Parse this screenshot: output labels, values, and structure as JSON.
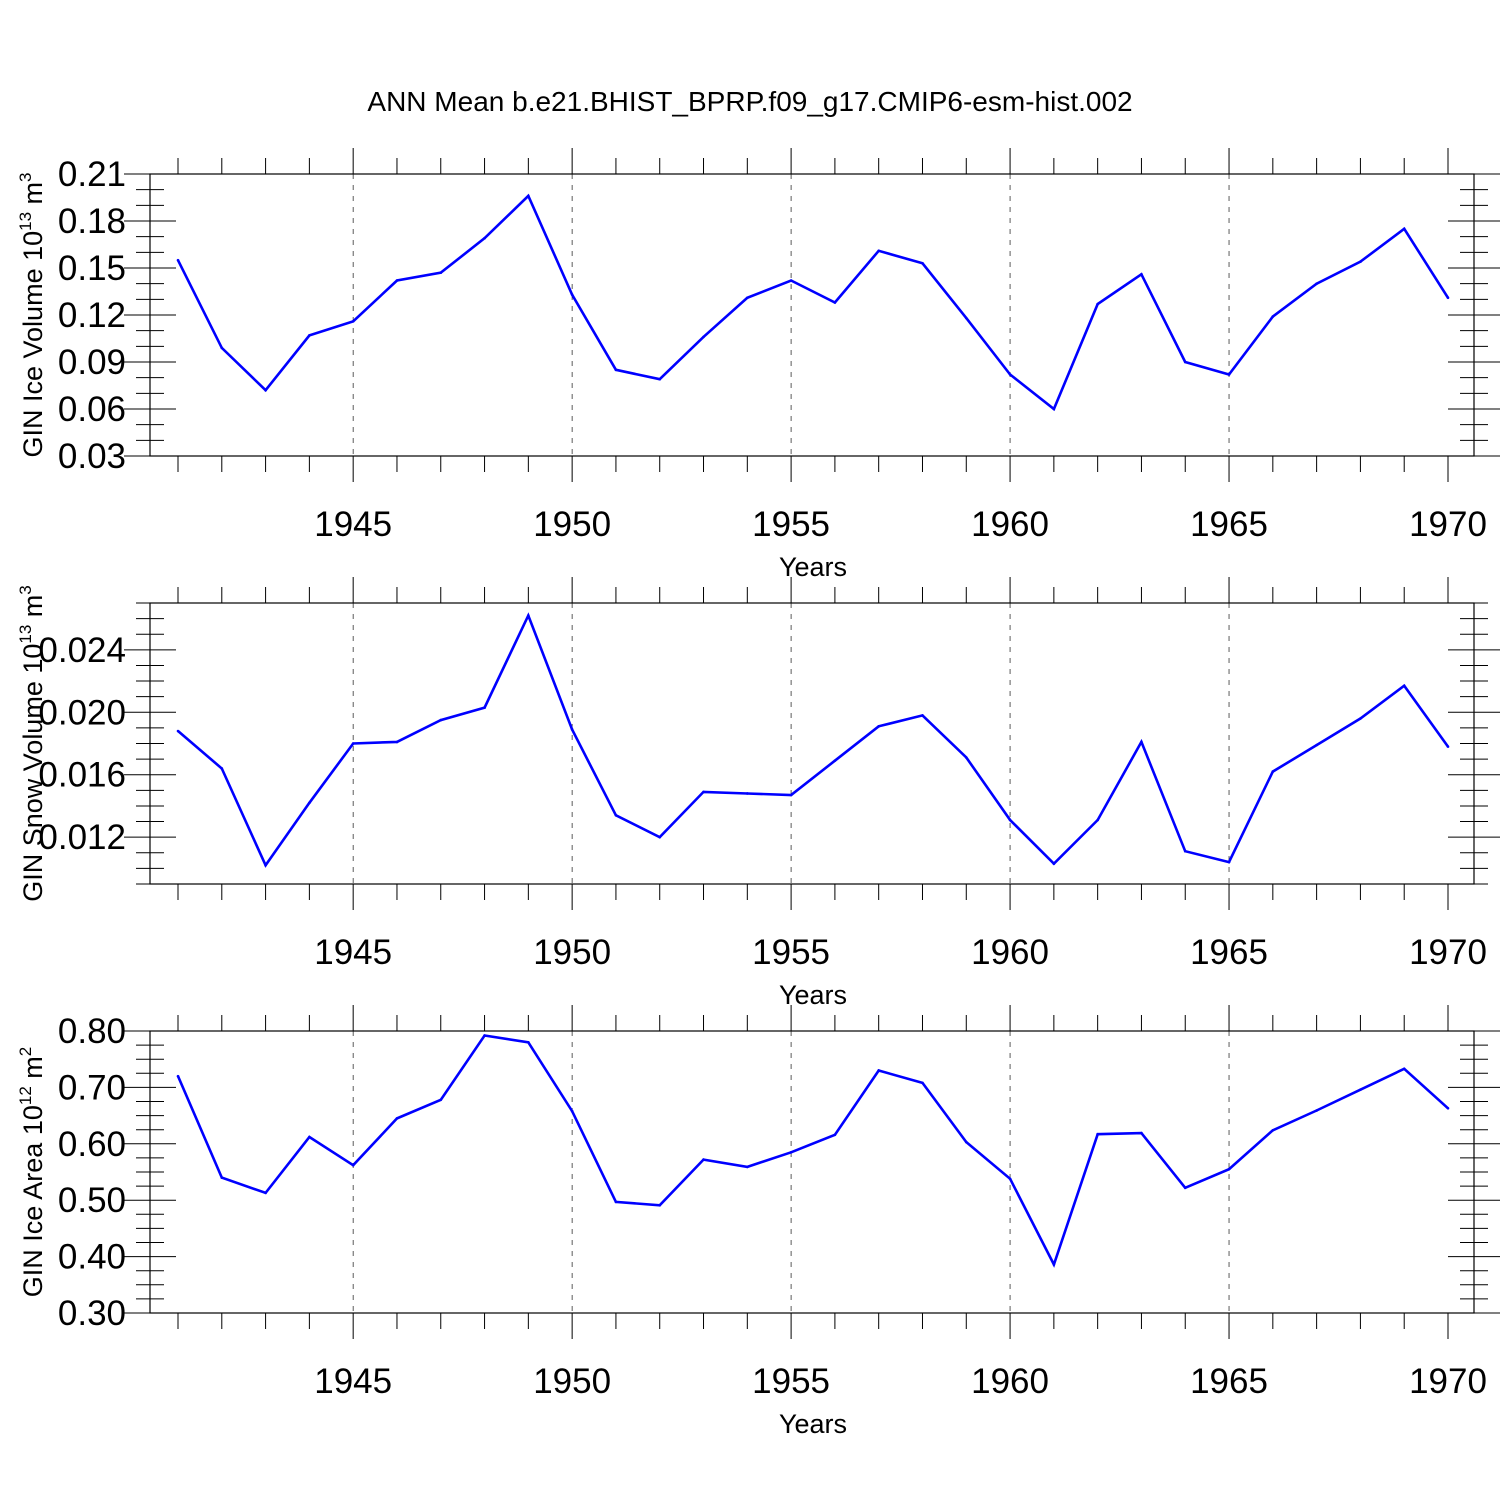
{
  "title": "ANN Mean b.e21.BHIST_BPRP.f09_g17.CMIP6-esm-hist.002",
  "colors": {
    "line": "#0000ff",
    "axis": "#000000",
    "grid": "#000000"
  },
  "chart_data": [
    {
      "type": "line",
      "title": "",
      "xlabel": "Years",
      "ylabel": "GIN Ice Volume 10",
      "ylabel_unit": "m",
      "ylabel_exp": "13",
      "ylabel_unit_exp": "3",
      "xlim": [
        1941,
        1970
      ],
      "ylim": [
        0.03,
        0.21
      ],
      "xticks": [
        1945,
        1950,
        1955,
        1960,
        1965,
        1970
      ],
      "yticks": [
        0.03,
        0.06,
        0.09,
        0.12,
        0.15,
        0.18,
        0.21
      ],
      "ytick_labels": [
        "0.03",
        "0.06",
        "0.09",
        "0.12",
        "0.15",
        "0.18",
        "0.21"
      ],
      "grid": "vertical dashed at major x ticks",
      "series": [
        {
          "name": "GIN Ice Volume",
          "x": [
            1941,
            1942,
            1943,
            1944,
            1945,
            1946,
            1947,
            1948,
            1949,
            1950,
            1951,
            1952,
            1953,
            1954,
            1955,
            1956,
            1957,
            1958,
            1959,
            1960,
            1961,
            1962,
            1963,
            1964,
            1965,
            1966,
            1967,
            1968,
            1969,
            1970
          ],
          "values": [
            0.155,
            0.099,
            0.072,
            0.107,
            0.116,
            0.142,
            0.147,
            0.169,
            0.196,
            0.133,
            0.085,
            0.079,
            0.106,
            0.131,
            0.142,
            0.128,
            0.161,
            0.153,
            0.118,
            0.082,
            0.06,
            0.127,
            0.146,
            0.09,
            0.082,
            0.119,
            0.14,
            0.154,
            0.175,
            0.131
          ]
        }
      ]
    },
    {
      "type": "line",
      "title": "",
      "xlabel": "Years",
      "ylabel": "GIN Snow Volume 10",
      "ylabel_unit": "m",
      "ylabel_exp": "13",
      "ylabel_unit_exp": "3",
      "xlim": [
        1941,
        1970
      ],
      "ylim": [
        0.009,
        0.027
      ],
      "xticks": [
        1945,
        1950,
        1955,
        1960,
        1965,
        1970
      ],
      "yticks": [
        0.012,
        0.016,
        0.02,
        0.024
      ],
      "ytick_labels": [
        "0.012",
        "0.016",
        "0.020",
        "0.024"
      ],
      "grid": "vertical dashed at major x ticks",
      "series": [
        {
          "name": "GIN Snow Volume",
          "x": [
            1941,
            1942,
            1943,
            1944,
            1945,
            1946,
            1947,
            1948,
            1949,
            1950,
            1951,
            1952,
            1953,
            1954,
            1955,
            1956,
            1957,
            1958,
            1959,
            1960,
            1961,
            1962,
            1963,
            1964,
            1965,
            1966,
            1967,
            1968,
            1969,
            1970
          ],
          "values": [
            0.0188,
            0.0164,
            0.0102,
            0.0142,
            0.018,
            0.0181,
            0.0195,
            0.0203,
            0.0262,
            0.0189,
            0.0134,
            0.012,
            0.0149,
            0.0148,
            0.0147,
            0.0169,
            0.0191,
            0.0198,
            0.0171,
            0.0131,
            0.0103,
            0.0131,
            0.0181,
            0.0111,
            0.0104,
            0.0162,
            0.0179,
            0.0196,
            0.0217,
            0.0178
          ]
        }
      ]
    },
    {
      "type": "line",
      "title": "",
      "xlabel": "Years",
      "ylabel": "GIN Ice Area 10",
      "ylabel_unit": "m",
      "ylabel_exp": "12",
      "ylabel_unit_exp": "2",
      "xlim": [
        1941,
        1970
      ],
      "ylim": [
        0.3,
        0.8
      ],
      "xticks": [
        1945,
        1950,
        1955,
        1960,
        1965,
        1970
      ],
      "yticks": [
        0.3,
        0.4,
        0.5,
        0.6,
        0.7,
        0.8
      ],
      "ytick_labels": [
        "0.30",
        "0.40",
        "0.50",
        "0.60",
        "0.70",
        "0.80"
      ],
      "grid": "vertical dashed at major x ticks",
      "series": [
        {
          "name": "GIN Ice Area",
          "x": [
            1941,
            1942,
            1943,
            1944,
            1945,
            1946,
            1947,
            1948,
            1949,
            1950,
            1951,
            1952,
            1953,
            1954,
            1955,
            1956,
            1957,
            1958,
            1959,
            1960,
            1961,
            1962,
            1963,
            1964,
            1965,
            1966,
            1967,
            1968,
            1969,
            1970
          ],
          "values": [
            0.72,
            0.54,
            0.513,
            0.612,
            0.562,
            0.645,
            0.678,
            0.792,
            0.78,
            0.658,
            0.497,
            0.491,
            0.572,
            0.559,
            0.585,
            0.616,
            0.73,
            0.708,
            0.603,
            0.538,
            0.386,
            0.617,
            0.619,
            0.522,
            0.555,
            0.624,
            0.659,
            0.696,
            0.733,
            0.663
          ]
        }
      ]
    }
  ]
}
